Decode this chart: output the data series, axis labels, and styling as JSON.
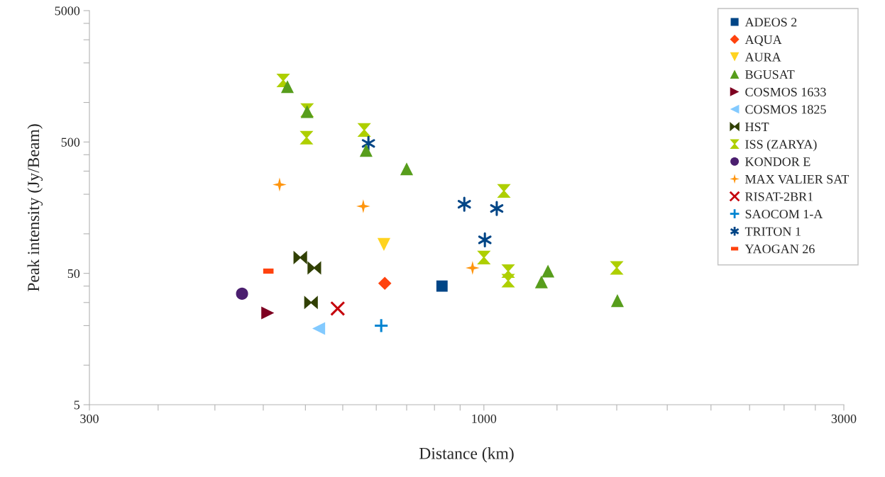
{
  "chart_data": {
    "type": "scatter",
    "xlabel": "Distance (km)",
    "ylabel": "Peak intensity (Jy/Beam)",
    "log": "xy",
    "grid": false,
    "legend": "top right",
    "xlim": [
      300,
      3000
    ],
    "ylim": [
      5,
      5000
    ],
    "xticks": [
      300,
      {
        "value": 370,
        "label": null
      },
      {
        "value": 440,
        "label": null
      },
      {
        "value": 510,
        "label": null
      },
      {
        "value": 580,
        "label": null
      },
      {
        "value": 650,
        "label": null
      },
      {
        "value": 720,
        "label": null
      },
      {
        "value": 790,
        "label": null
      },
      {
        "value": 860,
        "label": null
      },
      {
        "value": 930,
        "label": null
      },
      1000,
      {
        "value": 1250,
        "label": null
      },
      {
        "value": 1500,
        "label": null
      },
      {
        "value": 1750,
        "label": null
      },
      {
        "value": 2000,
        "label": null
      },
      {
        "value": 2250,
        "label": null
      },
      {
        "value": 2500,
        "label": null
      },
      {
        "value": 2750,
        "label": null
      },
      3000
    ],
    "yticks": [
      5,
      {
        "value": 10,
        "label": null
      },
      {
        "value": 20,
        "label": null
      },
      {
        "value": 30,
        "label": null
      },
      {
        "value": 40,
        "label": null
      },
      50,
      {
        "value": 100,
        "label": null
      },
      {
        "value": 200,
        "label": null
      },
      {
        "value": 300,
        "label": null
      },
      {
        "value": 400,
        "label": null
      },
      500,
      {
        "value": 1000,
        "label": null
      },
      {
        "value": 2000,
        "label": null
      },
      {
        "value": 3000,
        "label": null
      },
      {
        "value": 4000,
        "label": null
      },
      5000
    ],
    "series": [
      {
        "name": "ADEOS 2",
        "color": "#004586",
        "marker": "square",
        "x": [
          880
        ],
        "values": [
          40
        ]
      },
      {
        "name": "AQUA",
        "color": "#ff420e",
        "marker": "diamond",
        "x": [
          739
        ],
        "values": [
          42
        ]
      },
      {
        "name": "AURA",
        "color": "#ffd320",
        "marker": "triangle",
        "x": [
          737
        ],
        "values": [
          83
        ]
      },
      {
        "name": "BGUSAT",
        "color": "#579d1c",
        "marker": "triangle",
        "x": [
          549,
          583,
          698,
          790,
          1216,
          1192,
          1503
        ],
        "values": [
          1320,
          853,
          431,
          312,
          52,
          43,
          31
        ]
      },
      {
        "name": "COSMOS 1633",
        "color": "#7e0021",
        "marker": "triangle",
        "x": [
          517
        ],
        "values": [
          25
        ]
      },
      {
        "name": "COSMOS 1825",
        "color": "#83caff",
        "marker": "triangle",
        "x": [
          604
        ],
        "values": [
          19
        ]
      },
      {
        "name": "HST",
        "color": "#314004",
        "marker": "triangle",
        "x": [
          571,
          596,
          590
        ],
        "values": [
          66,
          55,
          30
        ]
      },
      {
        "name": "ISS (ZARYA)",
        "color": "#aecf00",
        "marker": "triangle",
        "x": [
          542,
          583,
          582,
          694,
          1063,
          1000,
          1077,
          1077,
          1500
        ],
        "values": [
          1470,
          874,
          539,
          617,
          212,
          66,
          52,
          44,
          55
        ]
      },
      {
        "name": "KONDOR E",
        "color": "#4b1f6f",
        "marker": "circle",
        "x": [
          478
        ],
        "values": [
          35
        ]
      },
      {
        "name": "MAX VALIER SAT",
        "color": "#ff950e",
        "marker": "star",
        "x": [
          536,
          692,
          966
        ],
        "values": [
          237,
          162,
          55
        ]
      },
      {
        "name": "RISAT-2BR1",
        "color": "#c5000b",
        "marker": "cross",
        "x": [
          640
        ],
        "values": [
          27
        ]
      },
      {
        "name": "SAOCOM 1-A",
        "color": "#0084d1",
        "marker": "plus",
        "x": [
          731
        ],
        "values": [
          20
        ]
      },
      {
        "name": "TRITON 1",
        "color": "#004586",
        "marker": "cross",
        "x": [
          703,
          942,
          1040,
          1003
        ],
        "values": [
          488,
          168,
          156,
          90
        ]
      },
      {
        "name": "YAOGAN 26",
        "color": "#ff420e",
        "marker": "square",
        "x": [
          518
        ],
        "values": [
          52
        ]
      }
    ]
  }
}
